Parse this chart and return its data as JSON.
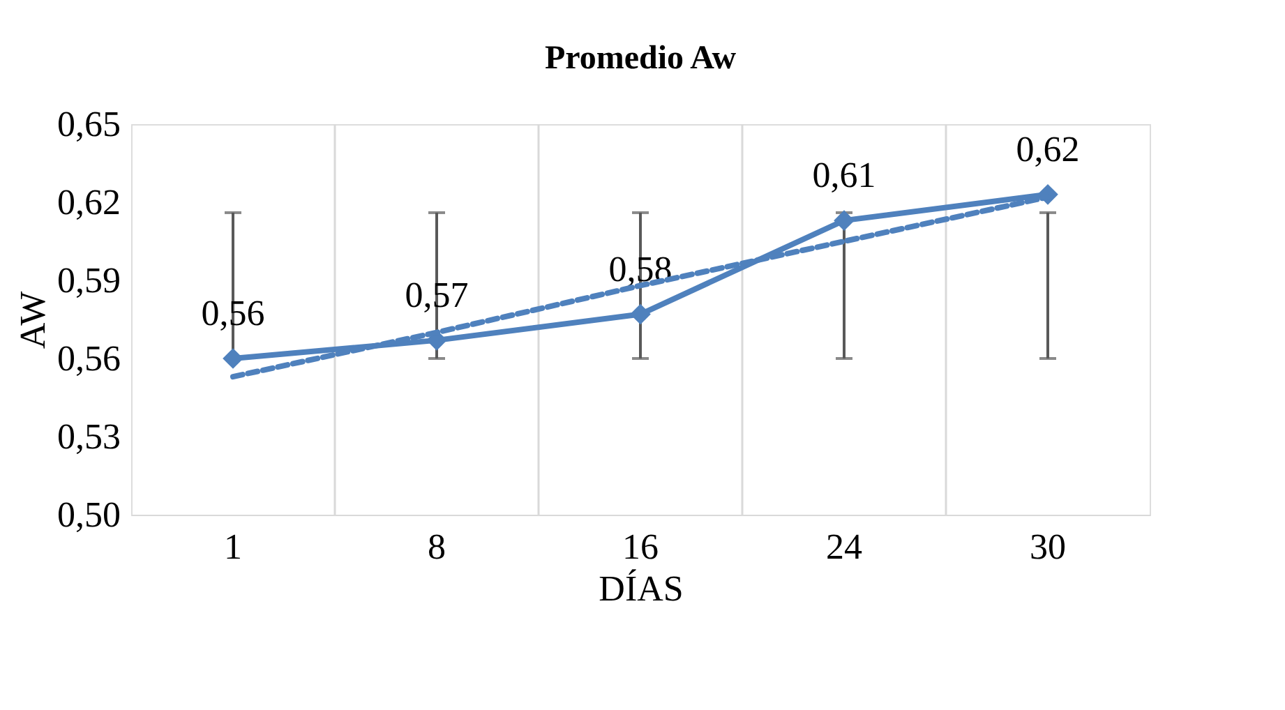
{
  "chart_data": {
    "type": "line",
    "title": "Promedio Aw",
    "xlabel": "DÍAS",
    "ylabel": "AW",
    "categories": [
      "1",
      "8",
      "16",
      "24",
      "30"
    ],
    "series": [
      {
        "color": "#4f81bd",
        "values": [
          0.56,
          0.567,
          0.577,
          0.613,
          0.623
        ],
        "marker": "diamond",
        "line_style": "solid",
        "value_labels": [
          "0,56",
          "0,57",
          "0,58",
          "0,61",
          "0,62"
        ],
        "errors": [
          [
            0.56,
            0.616
          ],
          [
            0.56,
            0.616
          ],
          [
            0.56,
            0.616
          ],
          [
            0.56,
            0.616
          ],
          [
            0.56,
            0.616
          ]
        ]
      },
      {
        "type": "line",
        "color": "#4f81bd",
        "values": [
          0.553,
          0.57,
          0.588,
          0.605,
          0.622
        ],
        "marker": "none",
        "line_style": "dashed"
      }
    ],
    "ylim": [
      0.5,
      0.65
    ],
    "yticks": [
      {
        "value": 0.5,
        "label": "0,50"
      },
      {
        "value": 0.53,
        "label": "0,53"
      },
      {
        "value": 0.56,
        "label": "0,56"
      },
      {
        "value": 0.59,
        "label": "0,59"
      },
      {
        "value": 0.62,
        "label": "0,62"
      },
      {
        "value": 0.65,
        "label": "0,65"
      }
    ],
    "grid": "x"
  }
}
